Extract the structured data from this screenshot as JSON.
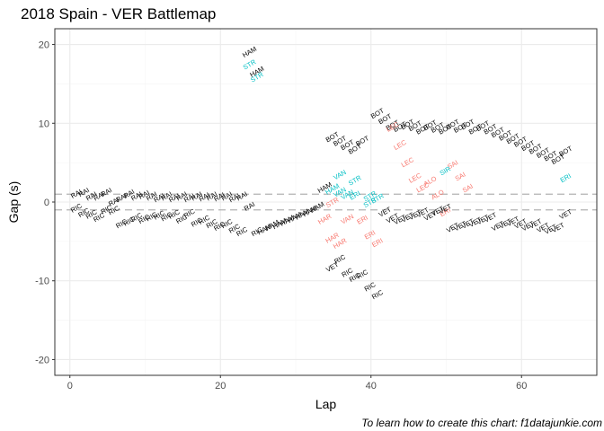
{
  "title": "2018 Spain - VER Battlemap",
  "caption": "To learn how to create this chart: f1datajunkie.com",
  "colors": {
    "ahead": "#000000",
    "behind_undercut": "#f8766d",
    "behind_overcut": "#00bfc4",
    "threshold_line": "#b3b3b3",
    "grid_major": "#ebebeb",
    "grid_minor": "#f5f5f5",
    "panel_border": "#333333"
  },
  "chart_data": {
    "type": "scatter",
    "xlabel": "Lap",
    "ylabel": "Gap (s)",
    "xlim": [
      -2,
      70
    ],
    "ylim": [
      -22,
      22
    ],
    "x_ticks": [
      0,
      20,
      40,
      60
    ],
    "y_ticks": [
      -20,
      -10,
      0,
      10,
      20
    ],
    "grid": true,
    "hlines": [
      1,
      -1
    ],
    "labels": [
      {
        "x": 1,
        "y": 0.8,
        "text": "RAI",
        "color": "ahead"
      },
      {
        "x": 2,
        "y": 1.0,
        "text": "RAI",
        "color": "ahead"
      },
      {
        "x": 3,
        "y": 0.5,
        "text": "RAI",
        "color": "ahead"
      },
      {
        "x": 4,
        "y": 0.5,
        "text": "RAI",
        "color": "ahead"
      },
      {
        "x": 5,
        "y": 1.0,
        "text": "RAI",
        "color": "ahead"
      },
      {
        "x": 6,
        "y": -0.2,
        "text": "RAI",
        "color": "ahead"
      },
      {
        "x": 7,
        "y": 0.3,
        "text": "RAI",
        "color": "ahead"
      },
      {
        "x": 8,
        "y": 0.8,
        "text": "RAI",
        "color": "ahead"
      },
      {
        "x": 9,
        "y": 0.5,
        "text": "RAI",
        "color": "ahead"
      },
      {
        "x": 10,
        "y": 0.7,
        "text": "RAI",
        "color": "ahead"
      },
      {
        "x": 11,
        "y": 0.5,
        "text": "RAI",
        "color": "ahead"
      },
      {
        "x": 12,
        "y": 0.3,
        "text": "RAI",
        "color": "ahead"
      },
      {
        "x": 13,
        "y": 0.5,
        "text": "RAI",
        "color": "ahead"
      },
      {
        "x": 14,
        "y": 0.3,
        "text": "RAI",
        "color": "ahead"
      },
      {
        "x": 15,
        "y": 0.5,
        "text": "RAI",
        "color": "ahead"
      },
      {
        "x": 16,
        "y": 0.3,
        "text": "RAI",
        "color": "ahead"
      },
      {
        "x": 17,
        "y": 0.5,
        "text": "RAI",
        "color": "ahead"
      },
      {
        "x": 18,
        "y": 0.4,
        "text": "RAI",
        "color": "ahead"
      },
      {
        "x": 19,
        "y": 0.5,
        "text": "RAI",
        "color": "ahead"
      },
      {
        "x": 20,
        "y": 0.4,
        "text": "RAI",
        "color": "ahead"
      },
      {
        "x": 21,
        "y": 0.5,
        "text": "RAI",
        "color": "ahead"
      },
      {
        "x": 22,
        "y": 0.3,
        "text": "RAI",
        "color": "ahead"
      },
      {
        "x": 23,
        "y": 0.5,
        "text": "RAI",
        "color": "ahead"
      },
      {
        "x": 24,
        "y": -0.8,
        "text": "RAI",
        "color": "ahead"
      },
      {
        "x": 1,
        "y": -1.0,
        "text": "RIC",
        "color": "ahead"
      },
      {
        "x": 2,
        "y": -1.6,
        "text": "RIC",
        "color": "ahead"
      },
      {
        "x": 3,
        "y": -1.8,
        "text": "RIC",
        "color": "ahead"
      },
      {
        "x": 4,
        "y": -2.2,
        "text": "RIC",
        "color": "ahead"
      },
      {
        "x": 5,
        "y": -1.2,
        "text": "RIC",
        "color": "ahead"
      },
      {
        "x": 6,
        "y": -1.3,
        "text": "RIC",
        "color": "ahead"
      },
      {
        "x": 7,
        "y": -3.0,
        "text": "RIC",
        "color": "ahead"
      },
      {
        "x": 8,
        "y": -2.7,
        "text": "RIC",
        "color": "ahead"
      },
      {
        "x": 9,
        "y": -2.2,
        "text": "RIC",
        "color": "ahead"
      },
      {
        "x": 10,
        "y": -2.4,
        "text": "RIC",
        "color": "ahead"
      },
      {
        "x": 11,
        "y": -2.1,
        "text": "RIC",
        "color": "ahead"
      },
      {
        "x": 12,
        "y": -1.9,
        "text": "RIC",
        "color": "ahead"
      },
      {
        "x": 13,
        "y": -2.1,
        "text": "RIC",
        "color": "ahead"
      },
      {
        "x": 14,
        "y": -1.8,
        "text": "RIC",
        "color": "ahead"
      },
      {
        "x": 15,
        "y": -2.4,
        "text": "RIC",
        "color": "ahead"
      },
      {
        "x": 16,
        "y": -1.7,
        "text": "RIC",
        "color": "ahead"
      },
      {
        "x": 17,
        "y": -2.8,
        "text": "RIC",
        "color": "ahead"
      },
      {
        "x": 18,
        "y": -2.5,
        "text": "RIC",
        "color": "ahead"
      },
      {
        "x": 19,
        "y": -3.0,
        "text": "RIC",
        "color": "ahead"
      },
      {
        "x": 20,
        "y": -3.3,
        "text": "RIC",
        "color": "ahead"
      },
      {
        "x": 21,
        "y": -3.0,
        "text": "RIC",
        "color": "ahead"
      },
      {
        "x": 22,
        "y": -3.6,
        "text": "RIC",
        "color": "ahead"
      },
      {
        "x": 23,
        "y": -4.0,
        "text": "RIC",
        "color": "ahead"
      },
      {
        "x": 25,
        "y": -4.0,
        "text": "RIC",
        "color": "ahead"
      },
      {
        "x": 26,
        "y": -3.7,
        "text": "HAM",
        "color": "ahead"
      },
      {
        "x": 27,
        "y": -3.2,
        "text": "HAM",
        "color": "ahead"
      },
      {
        "x": 28,
        "y": -3.0,
        "text": "HAM",
        "color": "ahead"
      },
      {
        "x": 29,
        "y": -2.6,
        "text": "HAM",
        "color": "ahead"
      },
      {
        "x": 30,
        "y": -2.2,
        "text": "HAM",
        "color": "ahead"
      },
      {
        "x": 31,
        "y": -1.8,
        "text": "HAM",
        "color": "ahead"
      },
      {
        "x": 32,
        "y": -1.4,
        "text": "HAM",
        "color": "ahead"
      },
      {
        "x": 33,
        "y": -0.9,
        "text": "HAM",
        "color": "ahead"
      },
      {
        "x": 34,
        "y": 1.6,
        "text": "HAM",
        "color": "ahead"
      },
      {
        "x": 35,
        "y": 1.4,
        "text": "HAM",
        "color": "behind_overcut"
      },
      {
        "x": 24,
        "y": 18.8,
        "text": "HAM",
        "color": "ahead"
      },
      {
        "x": 24,
        "y": 17.2,
        "text": "STR",
        "color": "behind_overcut"
      },
      {
        "x": 25,
        "y": 16.3,
        "text": "HAM",
        "color": "ahead"
      },
      {
        "x": 25,
        "y": 15.6,
        "text": "STR",
        "color": "behind_overcut"
      },
      {
        "x": 35,
        "y": -0.3,
        "text": "STR",
        "color": "behind_undercut"
      },
      {
        "x": 36,
        "y": 3.2,
        "text": "VAN",
        "color": "behind_overcut"
      },
      {
        "x": 36,
        "y": 1.0,
        "text": "VAN",
        "color": "behind_overcut"
      },
      {
        "x": 37,
        "y": 0.7,
        "text": "VAN",
        "color": "behind_overcut"
      },
      {
        "x": 38,
        "y": 0.6,
        "text": "ERI",
        "color": "behind_overcut"
      },
      {
        "x": 38,
        "y": 2.5,
        "text": "STR",
        "color": "behind_overcut"
      },
      {
        "x": 40,
        "y": 0.5,
        "text": "STR",
        "color": "behind_overcut"
      },
      {
        "x": 41,
        "y": 0.2,
        "text": "STR",
        "color": "behind_overcut"
      },
      {
        "x": 40,
        "y": -0.3,
        "text": "STR",
        "color": "behind_overcut"
      },
      {
        "x": 34,
        "y": -2.4,
        "text": "HAR",
        "color": "behind_undercut"
      },
      {
        "x": 35,
        "y": -4.8,
        "text": "HAR",
        "color": "behind_undercut"
      },
      {
        "x": 36,
        "y": -5.5,
        "text": "HAR",
        "color": "behind_undercut"
      },
      {
        "x": 37,
        "y": -2.4,
        "text": "VAN",
        "color": "behind_undercut"
      },
      {
        "x": 39,
        "y": -2.5,
        "text": "ERI",
        "color": "behind_undercut"
      },
      {
        "x": 40,
        "y": -4.4,
        "text": "ERI",
        "color": "behind_undercut"
      },
      {
        "x": 41,
        "y": -5.4,
        "text": "ERI",
        "color": "behind_undercut"
      },
      {
        "x": 35,
        "y": -8.5,
        "text": "VET",
        "color": "ahead"
      },
      {
        "x": 36,
        "y": -7.5,
        "text": "RIC",
        "color": "ahead"
      },
      {
        "x": 37,
        "y": -9.2,
        "text": "RIC",
        "color": "ahead"
      },
      {
        "x": 38,
        "y": -9.8,
        "text": "RIC",
        "color": "ahead"
      },
      {
        "x": 39,
        "y": -9.4,
        "text": "RIC",
        "color": "ahead"
      },
      {
        "x": 40,
        "y": -11.0,
        "text": "RIC",
        "color": "ahead"
      },
      {
        "x": 41,
        "y": -12.0,
        "text": "RIC",
        "color": "ahead"
      },
      {
        "x": 35,
        "y": 8.0,
        "text": "BOT",
        "color": "ahead"
      },
      {
        "x": 36,
        "y": 7.5,
        "text": "BOT",
        "color": "ahead"
      },
      {
        "x": 37,
        "y": 7.0,
        "text": "BOT",
        "color": "ahead"
      },
      {
        "x": 38,
        "y": 6.5,
        "text": "BOT",
        "color": "ahead"
      },
      {
        "x": 39,
        "y": 7.5,
        "text": "BOT",
        "color": "ahead"
      },
      {
        "x": 41,
        "y": 11.0,
        "text": "BOT",
        "color": "ahead"
      },
      {
        "x": 42,
        "y": 10.3,
        "text": "BOT",
        "color": "ahead"
      },
      {
        "x": 43,
        "y": 9.5,
        "text": "BOT",
        "color": "ahead"
      },
      {
        "x": 44,
        "y": 9.3,
        "text": "BOT",
        "color": "ahead"
      },
      {
        "x": 45,
        "y": 9.6,
        "text": "BOT",
        "color": "ahead"
      },
      {
        "x": 46,
        "y": 9.4,
        "text": "BOT",
        "color": "ahead"
      },
      {
        "x": 47,
        "y": 9.0,
        "text": "BOT",
        "color": "ahead"
      },
      {
        "x": 48,
        "y": 9.5,
        "text": "BOT",
        "color": "ahead"
      },
      {
        "x": 49,
        "y": 9.2,
        "text": "BOT",
        "color": "ahead"
      },
      {
        "x": 50,
        "y": 9.0,
        "text": "BOT",
        "color": "ahead"
      },
      {
        "x": 51,
        "y": 9.6,
        "text": "BOT",
        "color": "ahead"
      },
      {
        "x": 52,
        "y": 9.2,
        "text": "BOT",
        "color": "ahead"
      },
      {
        "x": 53,
        "y": 9.6,
        "text": "BOT",
        "color": "ahead"
      },
      {
        "x": 54,
        "y": 9.0,
        "text": "BOT",
        "color": "ahead"
      },
      {
        "x": 55,
        "y": 9.4,
        "text": "BOT",
        "color": "ahead"
      },
      {
        "x": 56,
        "y": 9.0,
        "text": "BOT",
        "color": "ahead"
      },
      {
        "x": 57,
        "y": 8.6,
        "text": "BOT",
        "color": "ahead"
      },
      {
        "x": 58,
        "y": 8.2,
        "text": "BOT",
        "color": "ahead"
      },
      {
        "x": 59,
        "y": 7.8,
        "text": "BOT",
        "color": "ahead"
      },
      {
        "x": 60,
        "y": 7.4,
        "text": "BOT",
        "color": "ahead"
      },
      {
        "x": 61,
        "y": 6.9,
        "text": "BOT",
        "color": "ahead"
      },
      {
        "x": 62,
        "y": 6.5,
        "text": "BOT",
        "color": "ahead"
      },
      {
        "x": 63,
        "y": 6.0,
        "text": "BOT",
        "color": "ahead"
      },
      {
        "x": 64,
        "y": 5.6,
        "text": "BOT",
        "color": "ahead"
      },
      {
        "x": 65,
        "y": 5.2,
        "text": "BOT",
        "color": "ahead"
      },
      {
        "x": 66,
        "y": 6.2,
        "text": "BOT",
        "color": "ahead"
      },
      {
        "x": 43,
        "y": 9.3,
        "text": "LEC",
        "color": "behind_undercut"
      },
      {
        "x": 44,
        "y": 7.0,
        "text": "LEC",
        "color": "behind_undercut"
      },
      {
        "x": 45,
        "y": 4.8,
        "text": "LEC",
        "color": "behind_undercut"
      },
      {
        "x": 46,
        "y": 2.8,
        "text": "LEC",
        "color": "behind_undercut"
      },
      {
        "x": 47,
        "y": 1.6,
        "text": "LEC",
        "color": "behind_undercut"
      },
      {
        "x": 48,
        "y": 2.4,
        "text": "ALO",
        "color": "behind_undercut"
      },
      {
        "x": 49,
        "y": 0.7,
        "text": "ALO",
        "color": "behind_undercut"
      },
      {
        "x": 50,
        "y": -1.5,
        "text": "ERI",
        "color": "behind_undercut"
      },
      {
        "x": 51,
        "y": 4.5,
        "text": "SAI",
        "color": "behind_undercut"
      },
      {
        "x": 52,
        "y": 3.0,
        "text": "SAI",
        "color": "behind_undercut"
      },
      {
        "x": 53,
        "y": 1.5,
        "text": "SAI",
        "color": "behind_undercut"
      },
      {
        "x": 50,
        "y": 3.7,
        "text": "SIR",
        "color": "behind_overcut"
      },
      {
        "x": 66,
        "y": 2.8,
        "text": "ERI",
        "color": "behind_overcut"
      },
      {
        "x": 42,
        "y": -1.5,
        "text": "VET",
        "color": "ahead"
      },
      {
        "x": 43,
        "y": -2.3,
        "text": "VET",
        "color": "ahead"
      },
      {
        "x": 44,
        "y": -2.5,
        "text": "VET",
        "color": "ahead"
      },
      {
        "x": 45,
        "y": -2.2,
        "text": "VET",
        "color": "ahead"
      },
      {
        "x": 46,
        "y": -1.9,
        "text": "VET",
        "color": "ahead"
      },
      {
        "x": 47,
        "y": -1.6,
        "text": "VET",
        "color": "ahead"
      },
      {
        "x": 48,
        "y": -2.0,
        "text": "VET",
        "color": "ahead"
      },
      {
        "x": 49,
        "y": -1.4,
        "text": "VET",
        "color": "ahead"
      },
      {
        "x": 50,
        "y": -1.1,
        "text": "VET",
        "color": "ahead"
      },
      {
        "x": 51,
        "y": -3.5,
        "text": "VET",
        "color": "ahead"
      },
      {
        "x": 52,
        "y": -3.3,
        "text": "VET",
        "color": "ahead"
      },
      {
        "x": 53,
        "y": -3.0,
        "text": "VET",
        "color": "ahead"
      },
      {
        "x": 54,
        "y": -2.8,
        "text": "VET",
        "color": "ahead"
      },
      {
        "x": 55,
        "y": -2.5,
        "text": "VET",
        "color": "ahead"
      },
      {
        "x": 56,
        "y": -2.2,
        "text": "VET",
        "color": "ahead"
      },
      {
        "x": 57,
        "y": -3.3,
        "text": "VET",
        "color": "ahead"
      },
      {
        "x": 58,
        "y": -3.0,
        "text": "VET",
        "color": "ahead"
      },
      {
        "x": 59,
        "y": -2.7,
        "text": "VET",
        "color": "ahead"
      },
      {
        "x": 60,
        "y": -3.0,
        "text": "VET",
        "color": "ahead"
      },
      {
        "x": 61,
        "y": -3.3,
        "text": "VET",
        "color": "ahead"
      },
      {
        "x": 62,
        "y": -3.0,
        "text": "VET",
        "color": "ahead"
      },
      {
        "x": 63,
        "y": -3.5,
        "text": "VET",
        "color": "ahead"
      },
      {
        "x": 64,
        "y": -3.7,
        "text": "VET",
        "color": "ahead"
      },
      {
        "x": 65,
        "y": -3.5,
        "text": "VET",
        "color": "ahead"
      },
      {
        "x": 66,
        "y": -1.8,
        "text": "VET",
        "color": "ahead"
      }
    ]
  }
}
